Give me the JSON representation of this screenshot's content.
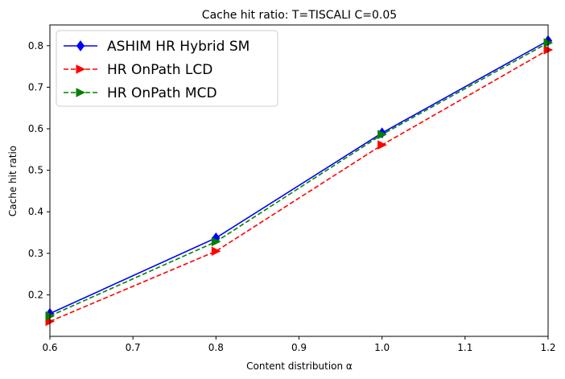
{
  "chart_data": {
    "type": "line",
    "title": "Cache hit ratio: T=TISCALI C=0.05",
    "xlabel": "Content distribution α",
    "ylabel": "Cache hit ratio",
    "x": [
      0.6,
      0.8,
      1.0,
      1.2
    ],
    "xlim": [
      0.6,
      1.2
    ],
    "ylim": [
      0.1,
      0.85
    ],
    "xticks": [
      "0.6",
      "0.7",
      "0.8",
      "0.9",
      "1.0",
      "1.1",
      "1.2"
    ],
    "yticks": [
      "0.2",
      "0.3",
      "0.4",
      "0.5",
      "0.6",
      "0.7",
      "0.8"
    ],
    "grid": false,
    "legend_position": "top-left",
    "series": [
      {
        "name": "ASHIM HR Hybrid SM",
        "values": [
          0.155,
          0.337,
          0.59,
          0.812
        ],
        "color": "#0000ff",
        "linestyle": "solid",
        "marker": "diamond"
      },
      {
        "name": "HR OnPath LCD",
        "values": [
          0.136,
          0.305,
          0.561,
          0.79
        ],
        "color": "#ff0000",
        "linestyle": "dashed",
        "marker": "triangle-right"
      },
      {
        "name": "HR OnPath MCD",
        "values": [
          0.149,
          0.328,
          0.586,
          0.807
        ],
        "color": "#008000",
        "linestyle": "dashed",
        "marker": "triangle-right"
      }
    ]
  }
}
